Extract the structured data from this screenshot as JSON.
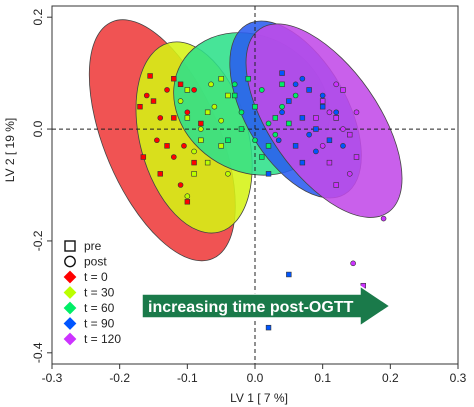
{
  "chart_data": {
    "type": "scatter",
    "title": "",
    "xlabel": "LV 1 [ 7 %]",
    "ylabel": "LV 2 [ 19 %]",
    "xlim": [
      -0.3,
      0.3
    ],
    "ylim": [
      -0.42,
      0.22
    ],
    "xticks": [
      "-0.3",
      "-0.2",
      "-0.1",
      "0.0",
      "0.1",
      "0.2",
      "0.3"
    ],
    "yticks": [
      "-0.4",
      "-0.2",
      "0.0",
      "0.2"
    ],
    "reference_lines": {
      "x": 0,
      "y": 0,
      "style": "dashed"
    },
    "legend_position": "bottom-left",
    "legend_markers": [
      {
        "label": "pre",
        "marker": "square"
      },
      {
        "label": "post",
        "marker": "circle"
      }
    ],
    "annotation": {
      "text": "increasing time post-OGTT",
      "color": "#1a7a4a",
      "shape": "right-arrow"
    },
    "series": [
      {
        "name": "t = 0",
        "color": "#ff0000",
        "fill": "#ee3b3b",
        "ellipse": {
          "cx": -0.137,
          "cy": -0.02,
          "rx": 0.085,
          "ry": 0.23,
          "rotation_deg": -23
        },
        "pre": [
          [
            -0.17,
            0.04
          ],
          [
            -0.15,
            0.05
          ],
          [
            -0.13,
            -0.03
          ],
          [
            -0.11,
            0.08
          ],
          [
            -0.09,
            -0.06
          ],
          [
            -0.12,
            0.02
          ],
          [
            -0.14,
            -0.08
          ],
          [
            -0.1,
            -0.13
          ],
          [
            -0.165,
            -0.05
          ],
          [
            -0.08,
            0.01
          ],
          [
            -0.12,
            0.09
          ],
          [
            -0.155,
            0.095
          ]
        ],
        "post": [
          [
            -0.16,
            0.06
          ],
          [
            -0.14,
            0.02
          ],
          [
            -0.12,
            -0.05
          ],
          [
            -0.1,
            0.03
          ],
          [
            -0.08,
            -0.02
          ],
          [
            -0.13,
            0.07
          ],
          [
            -0.11,
            -0.1
          ],
          [
            -0.09,
            0.07
          ],
          [
            -0.145,
            -0.02
          ],
          [
            -0.105,
            -0.03
          ]
        ]
      },
      {
        "name": "t = 30",
        "color": "#bbff00",
        "fill": "#d5f214",
        "ellipse": {
          "cx": -0.09,
          "cy": -0.015,
          "rx": 0.08,
          "ry": 0.175,
          "rotation_deg": -15
        },
        "pre": [
          [
            -0.1,
            0.07
          ],
          [
            -0.07,
            0.03
          ],
          [
            -0.05,
            -0.03
          ],
          [
            -0.09,
            -0.08
          ],
          [
            -0.04,
            0.06
          ],
          [
            -0.07,
            -0.06
          ],
          [
            -0.1,
            0.02
          ],
          [
            -0.05,
            0.09
          ],
          [
            -0.08,
            -0.02
          ]
        ],
        "post": [
          [
            -0.11,
            0.05
          ],
          [
            -0.08,
            0
          ],
          [
            -0.06,
            0.04
          ],
          [
            -0.09,
            -0.04
          ],
          [
            -0.04,
            -0.08
          ],
          [
            -0.065,
            0.08
          ],
          [
            -0.1,
            -0.12
          ],
          [
            -0.05,
            0.015
          ]
        ]
      },
      {
        "name": "t = 60",
        "color": "#00ee66",
        "fill": "#2ee08a",
        "ellipse": {
          "cx": -0.005,
          "cy": 0.045,
          "rx": 0.1,
          "ry": 0.145,
          "rotation_deg": -60
        },
        "pre": [
          [
            -0.03,
            0.06
          ],
          [
            0,
            0.04
          ],
          [
            0.03,
            0.02
          ],
          [
            -0.02,
            0
          ],
          [
            0.04,
            0.08
          ],
          [
            0.02,
            -0.03
          ],
          [
            -0.01,
            0.09
          ],
          [
            0.05,
            0.01
          ],
          [
            0.01,
            -0.05
          ],
          [
            -0.04,
            -0.02
          ]
        ],
        "post": [
          [
            -0.02,
            0.03
          ],
          [
            0.01,
            0.07
          ],
          [
            0.04,
            0.04
          ],
          [
            0,
            -0.02
          ],
          [
            0.03,
            -0.01
          ],
          [
            -0.03,
            0.08
          ],
          [
            0.06,
            0.06
          ],
          [
            0.02,
            0.01
          ]
        ]
      },
      {
        "name": "t = 90",
        "color": "#0055ff",
        "fill": "#2a5cf0",
        "ellipse": {
          "cx": 0.06,
          "cy": 0.035,
          "rx": 0.075,
          "ry": 0.175,
          "rotation_deg": -30
        },
        "pre": [
          [
            0.05,
            0.05
          ],
          [
            0.07,
            0.02
          ],
          [
            0.09,
            0
          ],
          [
            0.06,
            -0.03
          ],
          [
            0.08,
            0.07
          ],
          [
            0.1,
            0.04
          ],
          [
            0.11,
            -0.02
          ],
          [
            0.07,
            -0.06
          ],
          [
            0.12,
            0.02
          ],
          [
            0.04,
            0.1
          ],
          [
            0.02,
            -0.08
          ],
          [
            0.05,
            -0.26
          ],
          [
            0.02,
            -0.355
          ]
        ],
        "post": [
          [
            0.04,
            0.03
          ],
          [
            0.06,
            0.08
          ],
          [
            0.08,
            -0.01
          ],
          [
            0.1,
            0.06
          ],
          [
            0.12,
            0.03
          ],
          [
            0.09,
            -0.04
          ],
          [
            0.07,
            0.09
          ],
          [
            0.13,
            -0.03
          ],
          [
            0.035,
            -0.02
          ]
        ]
      },
      {
        "name": "t = 120",
        "color": "#cc33ff",
        "fill": "#c24ae8",
        "ellipse": {
          "cx": 0.102,
          "cy": 0.015,
          "rx": 0.08,
          "ry": 0.2,
          "rotation_deg": -35
        },
        "pre": [
          [
            0.1,
            0.05
          ],
          [
            0.12,
            0.02
          ],
          [
            0.14,
            -0.01
          ],
          [
            0.11,
            -0.06
          ],
          [
            0.13,
            0.07
          ],
          [
            0.09,
            0.02
          ],
          [
            0.15,
            -0.05
          ],
          [
            0.12,
            -0.1
          ],
          [
            0.16,
            -0.28
          ]
        ],
        "post": [
          [
            0.11,
            0.03
          ],
          [
            0.13,
            0
          ],
          [
            0.15,
            0.03
          ],
          [
            0.1,
            -0.03
          ],
          [
            0.14,
            -0.08
          ],
          [
            0.12,
            0.08
          ],
          [
            0.19,
            -0.16
          ],
          [
            0.145,
            -0.24
          ]
        ]
      }
    ]
  }
}
